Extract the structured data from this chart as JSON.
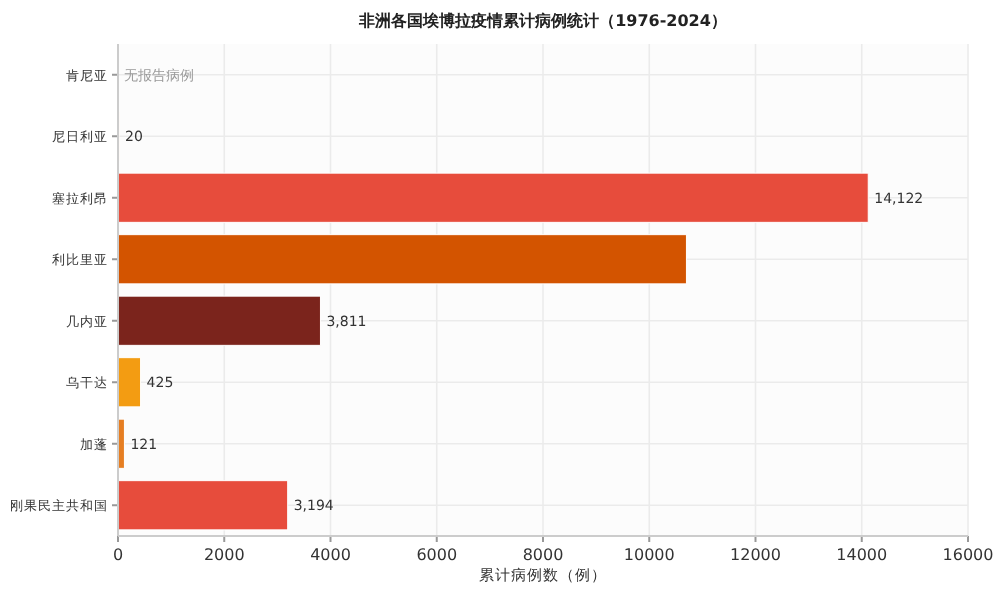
{
  "chart_data": {
    "type": "bar",
    "orientation": "horizontal",
    "title": "非洲各国埃博拉疫情累计病例统计（1976-2024）",
    "xlabel": "累计病例数（例）",
    "categories": [
      "肯尼亚",
      "尼日利亚",
      "塞拉利昂",
      "利比里亚",
      "几内亚",
      "乌干达",
      "加蓬",
      "刚果民主共和国"
    ],
    "values": [
      0,
      20,
      14122,
      10700,
      3811,
      425,
      121,
      3194
    ],
    "colors": [
      "#e67e22",
      "#e67e22",
      "#e74c3c",
      "#d35400",
      "#7b241c",
      "#f39c12",
      "#e67e22",
      "#e74c3c"
    ],
    "value_labels": [
      "无报告病例",
      "20",
      "14,122",
      null,
      "3,811",
      "425",
      "121",
      "3,194"
    ],
    "xlim": [
      0,
      16000
    ],
    "xticks": [
      0,
      2000,
      4000,
      6000,
      8000,
      10000,
      12000,
      14000,
      16000
    ],
    "grid": true
  }
}
